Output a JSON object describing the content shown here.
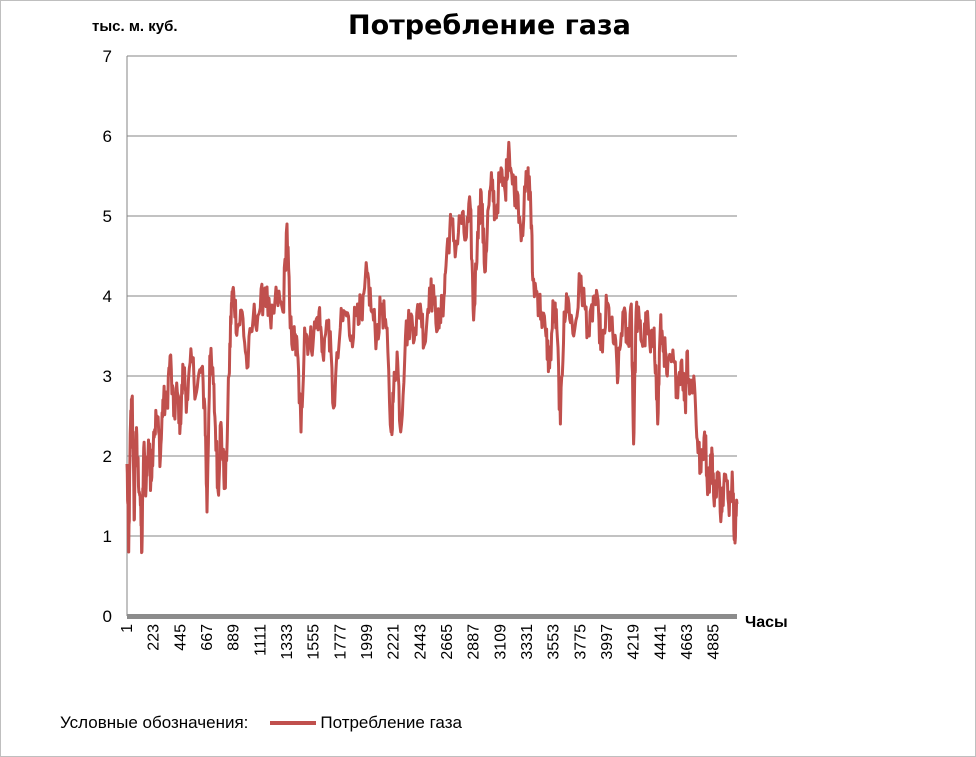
{
  "chart_data": {
    "type": "line",
    "title": "Потребление газа",
    "ylabel": "тыс. м. куб.",
    "xlabel": "Часы",
    "ylim": [
      0,
      7
    ],
    "yticks": [
      "0",
      "1",
      "2",
      "3",
      "4",
      "5",
      "6",
      "7"
    ],
    "xlim": [
      1,
      5080
    ],
    "xticks": [
      "1",
      "223",
      "445",
      "667",
      "889",
      "1111",
      "1333",
      "1555",
      "1777",
      "1999",
      "2221",
      "2443",
      "2665",
      "2887",
      "3109",
      "3331",
      "3553",
      "3775",
      "3997",
      "4219",
      "4441",
      "4663",
      "4885"
    ],
    "grid": "horizontal",
    "legend_position": "bottom-left",
    "legend_caption": "Условные обозначения:",
    "series": [
      {
        "name": "Потребление газа",
        "color": "#c0504d",
        "anchors": [
          [
            1,
            1.9
          ],
          [
            15,
            0.8
          ],
          [
            30,
            2.4
          ],
          [
            45,
            2.75
          ],
          [
            60,
            1.2
          ],
          [
            75,
            2.3
          ],
          [
            90,
            1.9
          ],
          [
            110,
            1.5
          ],
          [
            125,
            0.8
          ],
          [
            140,
            2.1
          ],
          [
            160,
            1.6
          ],
          [
            180,
            2.2
          ],
          [
            200,
            1.7
          ],
          [
            223,
            2.3
          ],
          [
            250,
            2.5
          ],
          [
            280,
            2.0
          ],
          [
            300,
            2.7
          ],
          [
            330,
            2.6
          ],
          [
            360,
            3.25
          ],
          [
            390,
            2.5
          ],
          [
            420,
            2.8
          ],
          [
            445,
            2.4
          ],
          [
            470,
            3.1
          ],
          [
            500,
            2.7
          ],
          [
            540,
            3.2
          ],
          [
            580,
            2.8
          ],
          [
            620,
            3.1
          ],
          [
            650,
            2.6
          ],
          [
            667,
            1.3
          ],
          [
            690,
            3.25
          ],
          [
            720,
            2.9
          ],
          [
            745,
            2.1
          ],
          [
            760,
            1.55
          ],
          [
            780,
            2.4
          ],
          [
            800,
            1.95
          ],
          [
            820,
            1.6
          ],
          [
            850,
            3.0
          ],
          [
            870,
            3.9
          ],
          [
            889,
            4.05
          ],
          [
            920,
            3.6
          ],
          [
            960,
            3.8
          ],
          [
            1000,
            3.1
          ],
          [
            1050,
            3.7
          ],
          [
            1111,
            3.85
          ],
          [
            1150,
            4.1
          ],
          [
            1200,
            3.6
          ],
          [
            1250,
            4.0
          ],
          [
            1300,
            3.8
          ],
          [
            1333,
            4.9
          ],
          [
            1360,
            3.6
          ],
          [
            1400,
            3.4
          ],
          [
            1420,
            3.3
          ],
          [
            1450,
            2.3
          ],
          [
            1480,
            3.6
          ],
          [
            1520,
            3.4
          ],
          [
            1555,
            3.5
          ],
          [
            1600,
            3.8
          ],
          [
            1630,
            3.3
          ],
          [
            1680,
            3.7
          ],
          [
            1720,
            2.6
          ],
          [
            1777,
            3.6
          ],
          [
            1820,
            3.8
          ],
          [
            1870,
            3.5
          ],
          [
            1920,
            3.9
          ],
          [
            1960,
            3.7
          ],
          [
            1999,
            4.3
          ],
          [
            2040,
            3.8
          ],
          [
            2080,
            3.5
          ],
          [
            2120,
            3.9
          ],
          [
            2160,
            3.6
          ],
          [
            2200,
            2.3
          ],
          [
            2221,
            2.8
          ],
          [
            2250,
            3.3
          ],
          [
            2280,
            2.3
          ],
          [
            2320,
            3.5
          ],
          [
            2360,
            3.7
          ],
          [
            2400,
            3.6
          ],
          [
            2443,
            3.9
          ],
          [
            2480,
            3.4
          ],
          [
            2520,
            4.1
          ],
          [
            2560,
            3.9
          ],
          [
            2600,
            3.6
          ],
          [
            2640,
            4.0
          ],
          [
            2665,
            4.6
          ],
          [
            2700,
            4.9
          ],
          [
            2740,
            4.6
          ],
          [
            2780,
            5.0
          ],
          [
            2820,
            4.7
          ],
          [
            2860,
            5.1
          ],
          [
            2887,
            3.7
          ],
          [
            2920,
            4.8
          ],
          [
            2950,
            5.3
          ],
          [
            2980,
            4.3
          ],
          [
            3010,
            5.1
          ],
          [
            3040,
            5.4
          ],
          [
            3070,
            5.0
          ],
          [
            3109,
            5.5
          ],
          [
            3150,
            5.3
          ],
          [
            3180,
            5.92
          ],
          [
            3210,
            5.4
          ],
          [
            3250,
            5.3
          ],
          [
            3290,
            4.8
          ],
          [
            3331,
            5.5
          ],
          [
            3360,
            5.3
          ],
          [
            3380,
            4.2
          ],
          [
            3420,
            4.0
          ],
          [
            3450,
            3.8
          ],
          [
            3490,
            3.5
          ],
          [
            3520,
            3.1
          ],
          [
            3553,
            3.9
          ],
          [
            3580,
            3.6
          ],
          [
            3610,
            2.4
          ],
          [
            3640,
            3.8
          ],
          [
            3680,
            3.9
          ],
          [
            3720,
            3.5
          ],
          [
            3775,
            4.2
          ],
          [
            3810,
            3.9
          ],
          [
            3850,
            3.5
          ],
          [
            3890,
            4.0
          ],
          [
            3930,
            3.7
          ],
          [
            3960,
            3.3
          ],
          [
            3997,
            3.9
          ],
          [
            4030,
            3.6
          ],
          [
            4060,
            3.4
          ],
          [
            4090,
            3.0
          ],
          [
            4130,
            3.8
          ],
          [
            4170,
            3.4
          ],
          [
            4200,
            3.9
          ],
          [
            4219,
            2.15
          ],
          [
            4240,
            3.8
          ],
          [
            4270,
            3.6
          ],
          [
            4300,
            3.4
          ],
          [
            4330,
            3.7
          ],
          [
            4360,
            3.3
          ],
          [
            4390,
            3.6
          ],
          [
            4420,
            2.4
          ],
          [
            4441,
            3.6
          ],
          [
            4470,
            3.4
          ],
          [
            4500,
            3.0
          ],
          [
            4540,
            3.2
          ],
          [
            4580,
            2.9
          ],
          [
            4620,
            3.2
          ],
          [
            4650,
            2.6
          ],
          [
            4663,
            3.3
          ],
          [
            4690,
            2.8
          ],
          [
            4720,
            3.0
          ],
          [
            4750,
            2.2
          ],
          [
            4780,
            1.8
          ],
          [
            4810,
            2.3
          ],
          [
            4840,
            1.6
          ],
          [
            4870,
            2.1
          ],
          [
            4885,
            1.5
          ],
          [
            4920,
            1.8
          ],
          [
            4950,
            1.3
          ],
          [
            4980,
            1.75
          ],
          [
            5010,
            1.4
          ],
          [
            5040,
            1.8
          ],
          [
            5060,
            1.05
          ],
          [
            5080,
            1.4
          ]
        ]
      }
    ]
  }
}
